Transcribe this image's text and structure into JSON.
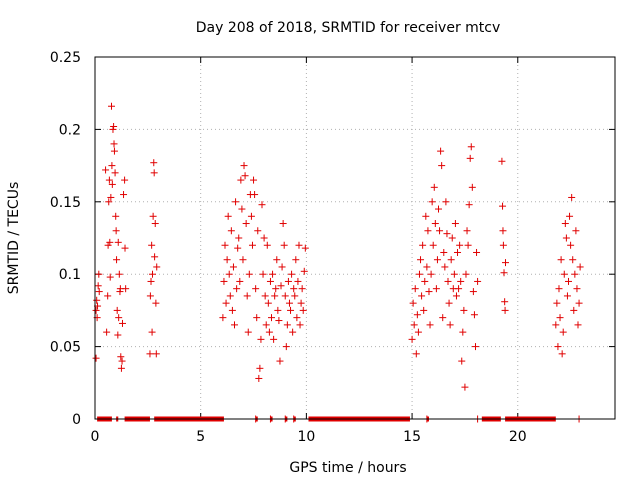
{
  "chart_data": {
    "type": "scatter",
    "title": "Day 208 of 2018, SRMTID for receiver mtcv",
    "xlabel": "GPS time / hours",
    "ylabel": "SRMTID / TECUs",
    "xlim": [
      0,
      24.6
    ],
    "ylim": [
      0,
      0.25
    ],
    "xticks": [
      0,
      5,
      10,
      15,
      20
    ],
    "yticks": [
      0,
      0.05,
      0.1,
      0.15,
      0.2,
      0.25
    ],
    "xtick_labels": [
      "0",
      "5",
      "10",
      "15",
      "20"
    ],
    "ytick_labels": [
      "0",
      "0.05",
      "0.1",
      "0.15",
      "0.2",
      "0.25"
    ],
    "grid": true,
    "marker": "+",
    "color": "#e00000",
    "series": [
      {
        "name": "SRMTID",
        "points": [
          [
            0.05,
            0.042
          ],
          [
            0.05,
            0.075
          ],
          [
            0.08,
            0.082
          ],
          [
            0.1,
            0.07
          ],
          [
            0.12,
            0.078
          ],
          [
            0.15,
            0.092
          ],
          [
            0.18,
            0.1
          ],
          [
            0.2,
            0.088
          ],
          [
            0.5,
            0.172
          ],
          [
            0.55,
            0.06
          ],
          [
            0.6,
            0.085
          ],
          [
            0.62,
            0.12
          ],
          [
            0.65,
            0.15
          ],
          [
            0.68,
            0.165
          ],
          [
            0.7,
            0.122
          ],
          [
            0.72,
            0.098
          ],
          [
            0.75,
            0.153
          ],
          [
            0.78,
            0.216
          ],
          [
            0.8,
            0.175
          ],
          [
            0.82,
            0.162
          ],
          [
            0.85,
            0.2
          ],
          [
            0.88,
            0.202
          ],
          [
            0.9,
            0.19
          ],
          [
            0.92,
            0.185
          ],
          [
            0.95,
            0.17
          ],
          [
            0.98,
            0.14
          ],
          [
            1.0,
            0.13
          ],
          [
            1.02,
            0.11
          ],
          [
            1.05,
            0.075
          ],
          [
            1.08,
            0.058
          ],
          [
            1.1,
            0.122
          ],
          [
            1.12,
            0.07
          ],
          [
            1.15,
            0.1
          ],
          [
            1.18,
            0.088
          ],
          [
            1.2,
            0.09
          ],
          [
            1.22,
            0.043
          ],
          [
            1.25,
            0.035
          ],
          [
            1.28,
            0.04
          ],
          [
            1.3,
            0.066
          ],
          [
            1.35,
            0.155
          ],
          [
            1.4,
            0.165
          ],
          [
            1.42,
            0.118
          ],
          [
            1.45,
            0.09
          ],
          [
            2.6,
            0.045
          ],
          [
            2.62,
            0.085
          ],
          [
            2.65,
            0.095
          ],
          [
            2.68,
            0.12
          ],
          [
            2.7,
            0.06
          ],
          [
            2.72,
            0.1
          ],
          [
            2.75,
            0.14
          ],
          [
            2.78,
            0.177
          ],
          [
            2.8,
            0.17
          ],
          [
            2.82,
            0.112
          ],
          [
            2.85,
            0.135
          ],
          [
            2.88,
            0.08
          ],
          [
            2.9,
            0.045
          ],
          [
            2.92,
            0.105
          ],
          [
            6.05,
            0.07
          ],
          [
            6.1,
            0.095
          ],
          [
            6.15,
            0.12
          ],
          [
            6.2,
            0.08
          ],
          [
            6.25,
            0.11
          ],
          [
            6.3,
            0.14
          ],
          [
            6.35,
            0.1
          ],
          [
            6.4,
            0.085
          ],
          [
            6.45,
            0.13
          ],
          [
            6.5,
            0.075
          ],
          [
            6.55,
            0.105
          ],
          [
            6.6,
            0.065
          ],
          [
            6.65,
            0.15
          ],
          [
            6.7,
            0.09
          ],
          [
            6.75,
            0.118
          ],
          [
            6.8,
            0.125
          ],
          [
            6.85,
            0.095
          ],
          [
            6.9,
            0.165
          ],
          [
            6.95,
            0.145
          ],
          [
            7.0,
            0.11
          ],
          [
            7.05,
            0.175
          ],
          [
            7.1,
            0.168
          ],
          [
            7.15,
            0.135
          ],
          [
            7.2,
            0.085
          ],
          [
            7.25,
            0.06
          ],
          [
            7.3,
            0.1
          ],
          [
            7.35,
            0.155
          ],
          [
            7.4,
            0.14
          ],
          [
            7.45,
            0.12
          ],
          [
            7.5,
            0.165
          ],
          [
            7.55,
            0.155
          ],
          [
            7.6,
            0.09
          ],
          [
            7.65,
            0.07
          ],
          [
            7.7,
            0.13
          ],
          [
            7.75,
            0.028
          ],
          [
            7.8,
            0.035
          ],
          [
            7.85,
            0.055
          ],
          [
            7.9,
            0.148
          ],
          [
            7.95,
            0.1
          ],
          [
            8.0,
            0.125
          ],
          [
            8.05,
            0.085
          ],
          [
            8.1,
            0.065
          ],
          [
            8.15,
            0.12
          ],
          [
            8.2,
            0.08
          ],
          [
            8.25,
            0.06
          ],
          [
            8.3,
            0.095
          ],
          [
            8.35,
            0.07
          ],
          [
            8.4,
            0.1
          ],
          [
            8.45,
            0.055
          ],
          [
            8.5,
            0.085
          ],
          [
            8.55,
            0.09
          ],
          [
            8.6,
            0.11
          ],
          [
            8.65,
            0.075
          ],
          [
            8.7,
            0.068
          ],
          [
            8.75,
            0.04
          ],
          [
            8.8,
            0.092
          ],
          [
            8.85,
            0.105
          ],
          [
            8.9,
            0.135
          ],
          [
            8.95,
            0.12
          ],
          [
            9.0,
            0.085
          ],
          [
            9.05,
            0.05
          ],
          [
            9.1,
            0.065
          ],
          [
            9.15,
            0.095
          ],
          [
            9.2,
            0.08
          ],
          [
            9.25,
            0.075
          ],
          [
            9.3,
            0.1
          ],
          [
            9.35,
            0.06
          ],
          [
            9.4,
            0.09
          ],
          [
            9.45,
            0.085
          ],
          [
            9.5,
            0.11
          ],
          [
            9.55,
            0.07
          ],
          [
            9.6,
            0.095
          ],
          [
            9.65,
            0.12
          ],
          [
            9.7,
            0.065
          ],
          [
            9.75,
            0.08
          ],
          [
            9.8,
            0.09
          ],
          [
            9.85,
            0.075
          ],
          [
            9.9,
            0.102
          ],
          [
            9.95,
            0.118
          ],
          [
            15.0,
            0.055
          ],
          [
            15.05,
            0.08
          ],
          [
            15.1,
            0.065
          ],
          [
            15.15,
            0.09
          ],
          [
            15.2,
            0.045
          ],
          [
            15.25,
            0.072
          ],
          [
            15.3,
            0.06
          ],
          [
            15.35,
            0.1
          ],
          [
            15.4,
            0.11
          ],
          [
            15.45,
            0.085
          ],
          [
            15.5,
            0.12
          ],
          [
            15.55,
            0.075
          ],
          [
            15.6,
            0.095
          ],
          [
            15.65,
            0.14
          ],
          [
            15.7,
            0.105
          ],
          [
            15.75,
            0.13
          ],
          [
            15.8,
            0.088
          ],
          [
            15.85,
            0.065
          ],
          [
            15.9,
            0.1
          ],
          [
            15.95,
            0.15
          ],
          [
            16.0,
            0.12
          ],
          [
            16.05,
            0.16
          ],
          [
            16.1,
            0.135
          ],
          [
            16.15,
            0.09
          ],
          [
            16.2,
            0.11
          ],
          [
            16.25,
            0.145
          ],
          [
            16.3,
            0.13
          ],
          [
            16.35,
            0.185
          ],
          [
            16.4,
            0.175
          ],
          [
            16.45,
            0.07
          ],
          [
            16.5,
            0.115
          ],
          [
            16.55,
            0.105
          ],
          [
            16.6,
            0.15
          ],
          [
            16.65,
            0.128
          ],
          [
            16.7,
            0.095
          ],
          [
            16.75,
            0.08
          ],
          [
            16.8,
            0.065
          ],
          [
            16.85,
            0.11
          ],
          [
            16.9,
            0.125
          ],
          [
            16.95,
            0.09
          ],
          [
            17.0,
            0.1
          ],
          [
            17.05,
            0.135
          ],
          [
            17.1,
            0.085
          ],
          [
            17.15,
            0.115
          ],
          [
            17.2,
            0.09
          ],
          [
            17.25,
            0.12
          ],
          [
            17.3,
            0.095
          ],
          [
            17.35,
            0.04
          ],
          [
            17.4,
            0.06
          ],
          [
            17.45,
            0.075
          ],
          [
            17.5,
            0.022
          ],
          [
            17.55,
            0.1
          ],
          [
            17.6,
            0.13
          ],
          [
            17.65,
            0.12
          ],
          [
            17.7,
            0.148
          ],
          [
            17.75,
            0.18
          ],
          [
            17.8,
            0.188
          ],
          [
            17.85,
            0.16
          ],
          [
            17.9,
            0.088
          ],
          [
            17.95,
            0.072
          ],
          [
            18.0,
            0.05
          ],
          [
            18.05,
            0.115
          ],
          [
            18.1,
            0.095
          ],
          [
            19.25,
            0.178
          ],
          [
            19.28,
            0.147
          ],
          [
            19.3,
            0.13
          ],
          [
            19.32,
            0.12
          ],
          [
            19.35,
            0.101
          ],
          [
            19.38,
            0.081
          ],
          [
            19.4,
            0.075
          ],
          [
            19.42,
            0.108
          ],
          [
            21.8,
            0.065
          ],
          [
            21.85,
            0.08
          ],
          [
            21.9,
            0.05
          ],
          [
            21.95,
            0.09
          ],
          [
            22.0,
            0.07
          ],
          [
            22.05,
            0.11
          ],
          [
            22.1,
            0.045
          ],
          [
            22.15,
            0.06
          ],
          [
            22.2,
            0.1
          ],
          [
            22.25,
            0.135
          ],
          [
            22.3,
            0.125
          ],
          [
            22.35,
            0.085
          ],
          [
            22.4,
            0.095
          ],
          [
            22.45,
            0.14
          ],
          [
            22.5,
            0.12
          ],
          [
            22.55,
            0.153
          ],
          [
            22.6,
            0.11
          ],
          [
            22.65,
            0.075
          ],
          [
            22.7,
            0.1
          ],
          [
            22.75,
            0.13
          ],
          [
            22.8,
            0.09
          ],
          [
            22.85,
            0.065
          ],
          [
            22.9,
            0.08
          ],
          [
            22.95,
            0.105
          ]
        ],
        "zero_ranges": [
          [
            0.1,
            0.8
          ],
          [
            1.0,
            1.1
          ],
          [
            1.4,
            2.6
          ],
          [
            2.8,
            6.1
          ],
          [
            7.6,
            7.7
          ],
          [
            8.3,
            8.4
          ],
          [
            9.0,
            9.1
          ],
          [
            9.4,
            9.5
          ],
          [
            10.1,
            14.9
          ],
          [
            15.7,
            15.8
          ],
          [
            18.3,
            19.2
          ],
          [
            19.4,
            21.8
          ]
        ],
        "zero_points": [
          7.6,
          8.3,
          9.0,
          9.4,
          15.7,
          18.1,
          22.9
        ]
      }
    ]
  }
}
